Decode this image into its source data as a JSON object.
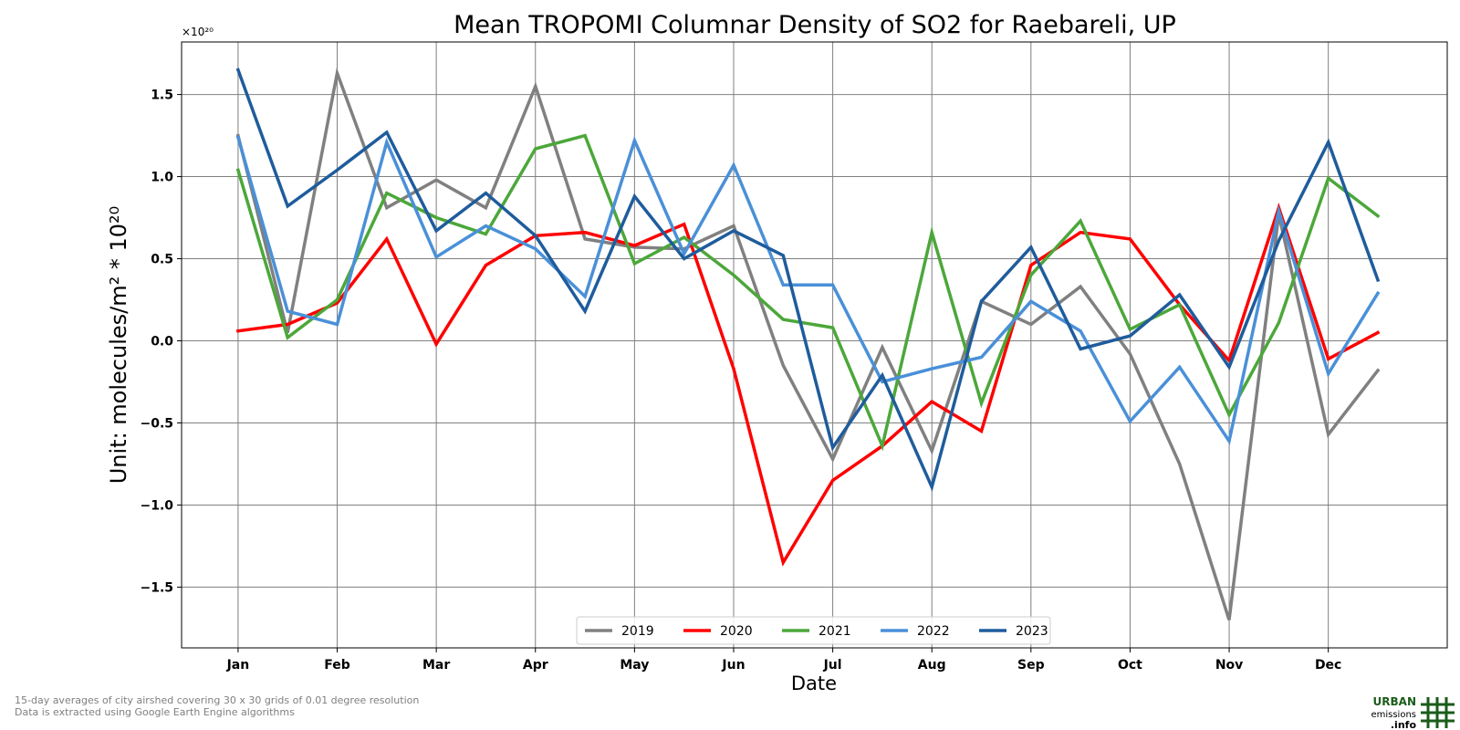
{
  "chart_data": {
    "type": "line",
    "title": "Mean TROPOMI Columnar Density of SO2 for Raebareli, UP",
    "xlabel": "Date",
    "ylabel": "Unit: molecules/m² * 10²⁰",
    "y_multiplier": "×10²⁰",
    "ylim": [
      -1.87,
      1.82
    ],
    "yticks": [
      1.5,
      1.0,
      0.5,
      0.0,
      -0.5,
      -1.0,
      -1.5
    ],
    "ytick_labels": [
      "1.5",
      "1.0",
      "0.5",
      "0.0",
      "−0.5",
      "−1.0",
      "−1.5"
    ],
    "xtick_labels": [
      "Jan",
      "Feb",
      "Mar",
      "Apr",
      "May",
      "Jun",
      "Jul",
      "Aug",
      "Sep",
      "Oct",
      "Nov",
      "Dec"
    ],
    "x": [
      1,
      1.5,
      2,
      2.5,
      3,
      3.5,
      4,
      4.5,
      5,
      5.5,
      6,
      6.5,
      7,
      7.5,
      8,
      8.5,
      9,
      9.5,
      10,
      10.5,
      11,
      11.5,
      12,
      12.5
    ],
    "xlim": [
      0.43,
      13.2
    ],
    "grid": true,
    "legend_position": "bottom-center",
    "series": [
      {
        "name": "2019",
        "color": "#808080",
        "values": [
          1.25,
          0.05,
          1.63,
          0.81,
          0.98,
          0.81,
          1.55,
          0.62,
          0.57,
          0.56,
          0.7,
          -0.15,
          -0.72,
          -0.04,
          -0.67,
          0.24,
          0.1,
          0.33,
          -0.08,
          -0.75,
          -1.7,
          0.77,
          -0.57,
          -0.18
        ]
      },
      {
        "name": "2020",
        "color": "#ff0000",
        "values": [
          0.06,
          0.1,
          0.23,
          0.62,
          -0.02,
          0.46,
          0.64,
          0.66,
          0.58,
          0.71,
          -0.17,
          -1.35,
          -0.85,
          -0.64,
          -0.37,
          -0.55,
          0.46,
          0.66,
          0.62,
          0.22,
          -0.12,
          0.81,
          -0.11,
          0.05
        ]
      },
      {
        "name": "2021",
        "color": "#4ca73a",
        "values": [
          1.04,
          0.02,
          0.25,
          0.9,
          0.75,
          0.65,
          1.17,
          1.25,
          0.47,
          0.63,
          0.4,
          0.13,
          0.08,
          -0.64,
          0.66,
          -0.38,
          0.4,
          0.73,
          0.07,
          0.22,
          -0.45,
          0.11,
          0.99,
          0.76
        ]
      },
      {
        "name": "2022",
        "color": "#4a90d8",
        "values": [
          1.24,
          0.18,
          0.1,
          1.21,
          0.51,
          0.7,
          0.56,
          0.27,
          1.22,
          0.53,
          1.07,
          0.34,
          0.34,
          -0.25,
          -0.17,
          -0.1,
          0.24,
          0.06,
          -0.49,
          -0.16,
          -0.61,
          0.79,
          -0.2,
          0.29
        ]
      },
      {
        "name": "2023",
        "color": "#1f5c9c",
        "values": [
          1.65,
          0.82,
          1.04,
          1.27,
          0.67,
          0.9,
          0.64,
          0.18,
          0.88,
          0.5,
          0.67,
          0.52,
          -0.65,
          -0.21,
          -0.89,
          0.24,
          0.57,
          -0.05,
          0.03,
          0.28,
          -0.16,
          0.61,
          1.21,
          0.37
        ]
      }
    ]
  },
  "footnotes": [
    "15-day averages of city airshed covering 30 x 30 grids of 0.01 degree resolution",
    "Data is extracted using Google Earth Engine algorithms"
  ],
  "logo": {
    "line1": "URBAN",
    "line2": "emissions",
    "line3": ".info",
    "color": "#1a5c1a"
  }
}
